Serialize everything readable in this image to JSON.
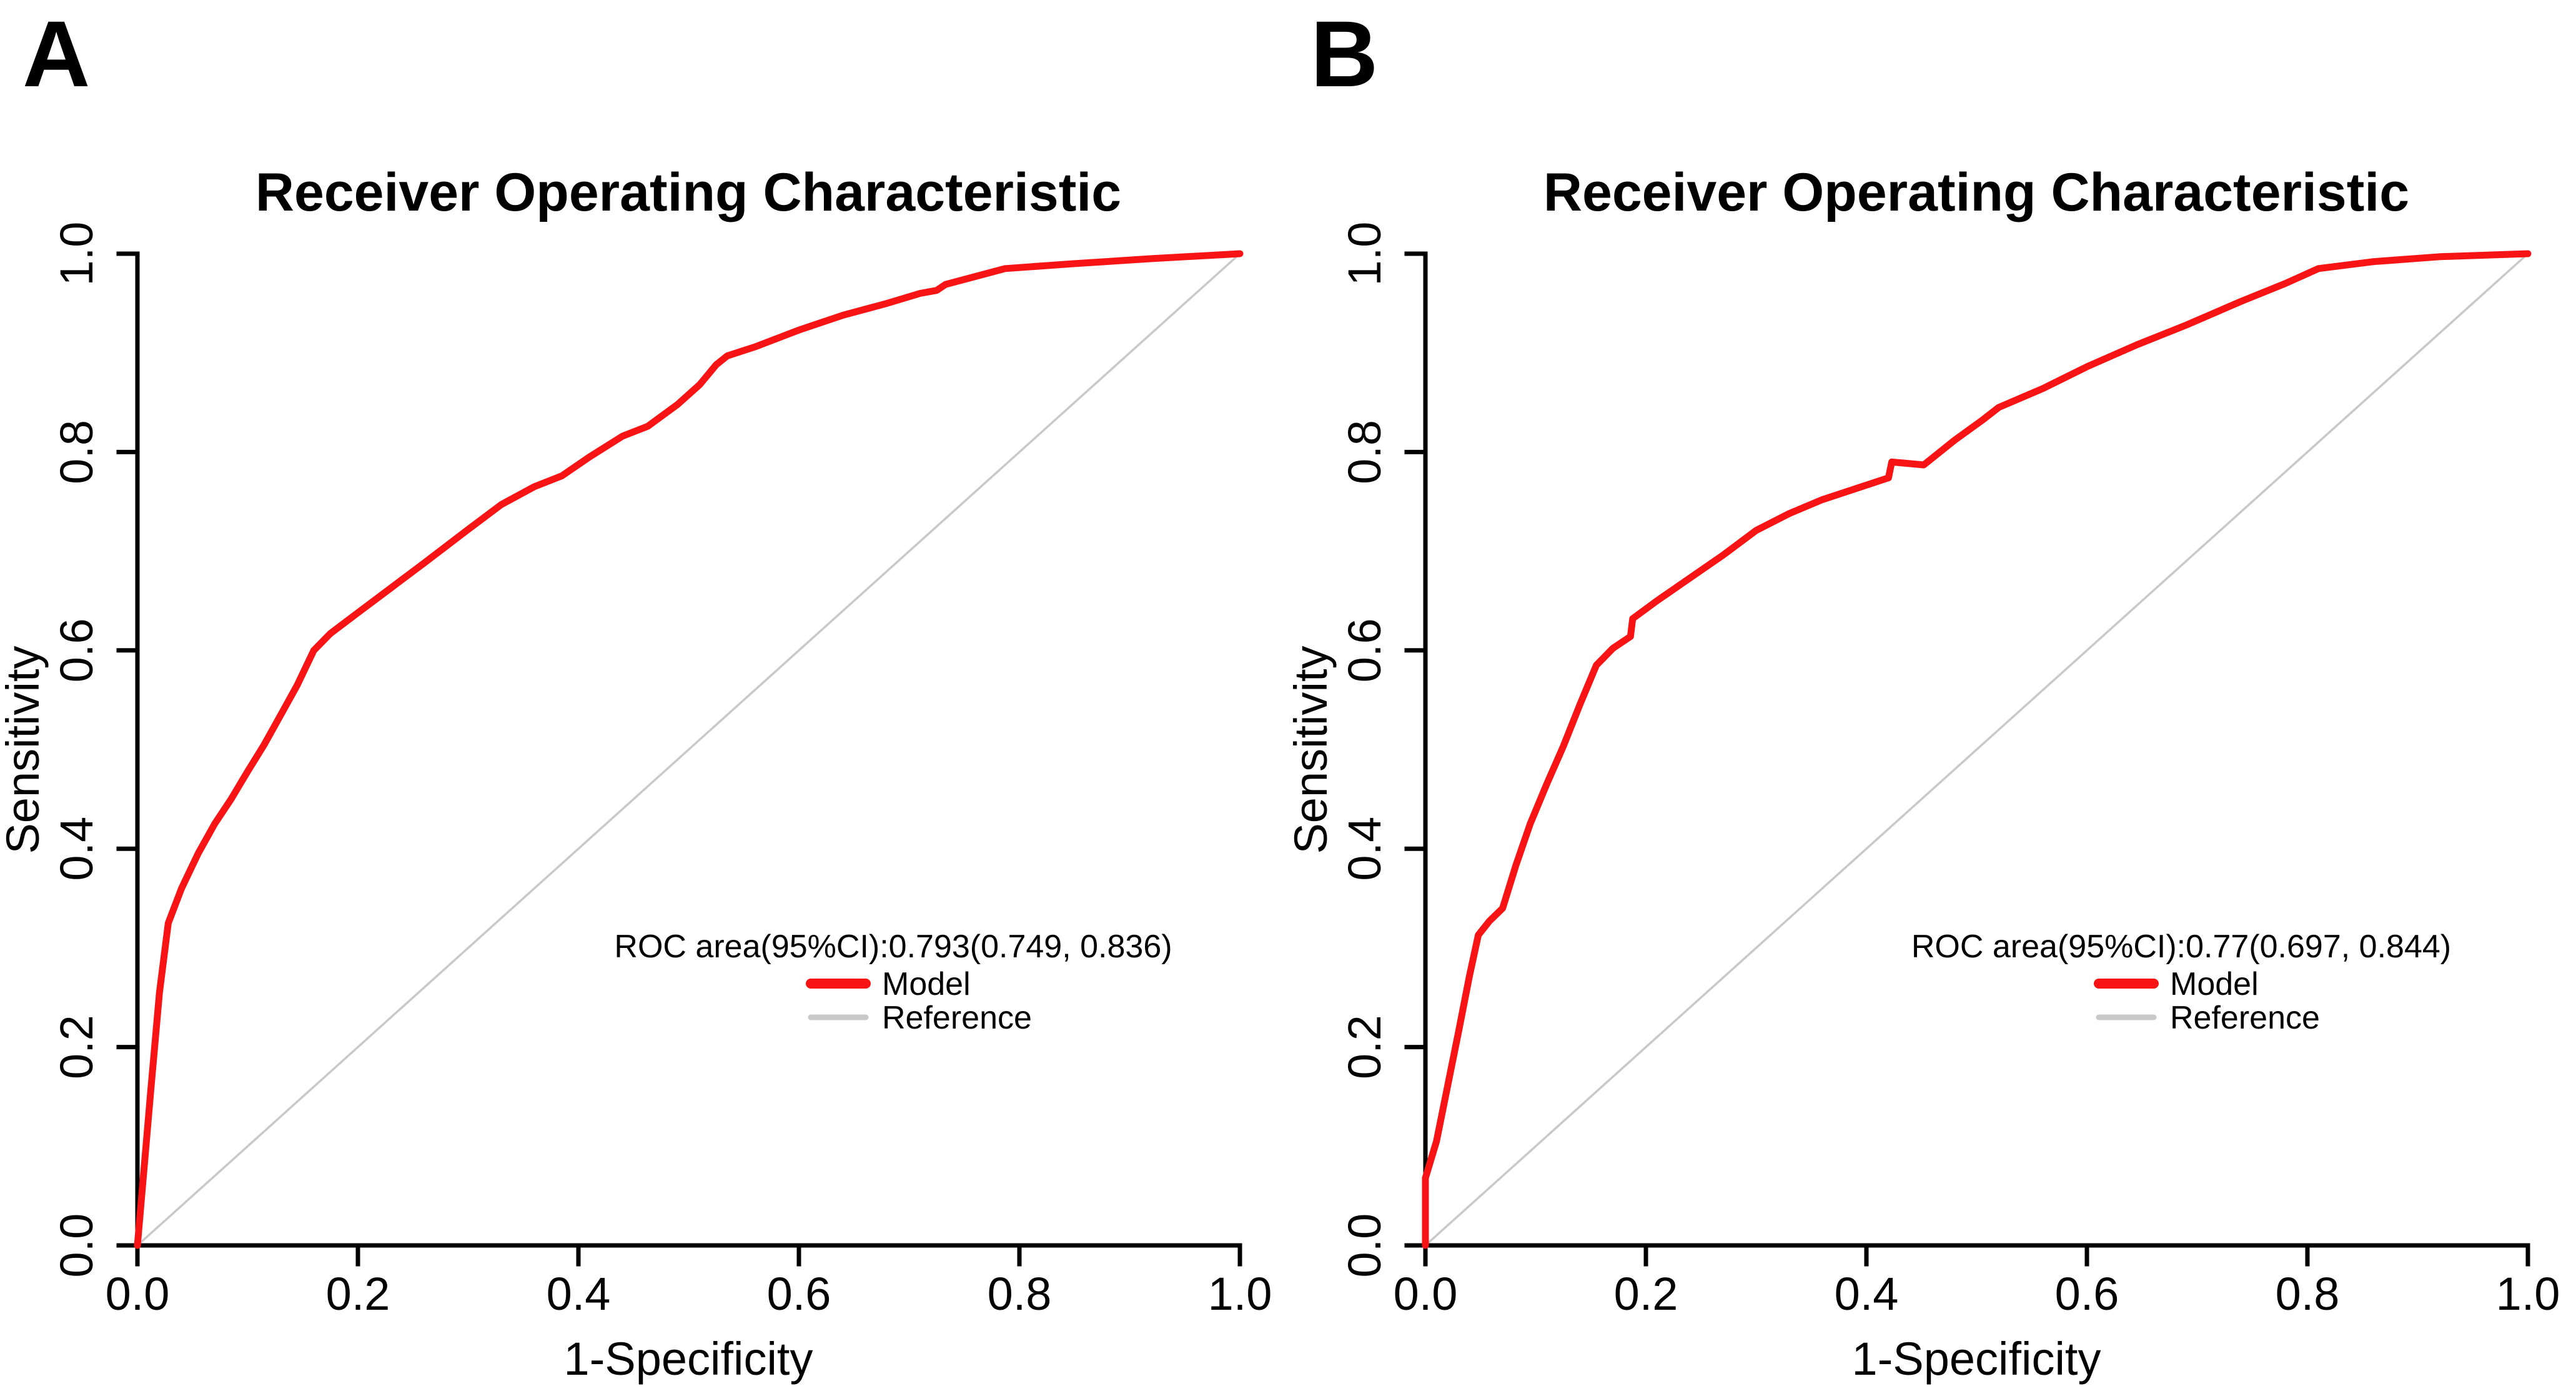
{
  "figure": {
    "background": "#FFFFFF",
    "axis_color": "#000000"
  },
  "chart_data": [
    {
      "id": "a",
      "panel_label": "A",
      "type": "line",
      "title": "Receiver Operating Characteristic",
      "xlabel": "1-Specificity",
      "ylabel": "Sensitivity",
      "xlim": [
        0,
        1
      ],
      "ylim": [
        0,
        1
      ],
      "grid": false,
      "x_ticks": {
        "values": [
          0,
          0.2,
          0.4,
          0.6,
          0.8,
          1.0
        ],
        "labels": [
          "0.0",
          "0.2",
          "0.4",
          "0.6",
          "0.8",
          "1.0"
        ]
      },
      "y_ticks": {
        "values": [
          0,
          0.2,
          0.4,
          0.6,
          0.8,
          1.0
        ],
        "labels": [
          "0.0",
          "0.2",
          "0.4",
          "0.6",
          "0.8",
          "1.0"
        ]
      },
      "auc": {
        "value": 0.793,
        "ci_level": "95%",
        "ci_lower": 0.749,
        "ci_upper": 0.836
      },
      "legend": {
        "position": "inside-lower-right",
        "auc_text": "ROC area(95%CI):0.793(0.749, 0.836)",
        "entries": [
          {
            "label": "Model",
            "color": "#F81414"
          },
          {
            "label": "Reference",
            "color": "#C9C9C9"
          }
        ]
      },
      "series": [
        {
          "name": "Model",
          "color": "#F81414",
          "points": [
            [
              0,
              0
            ],
            [
              0.012,
              0.155
            ],
            [
              0.02,
              0.255
            ],
            [
              0.028,
              0.325
            ],
            [
              0.04,
              0.36
            ],
            [
              0.055,
              0.395
            ],
            [
              0.07,
              0.425
            ],
            [
              0.085,
              0.45
            ],
            [
              0.1,
              0.478
            ],
            [
              0.115,
              0.505
            ],
            [
              0.13,
              0.535
            ],
            [
              0.145,
              0.565
            ],
            [
              0.16,
              0.6
            ],
            [
              0.175,
              0.617
            ],
            [
              0.2,
              0.638
            ],
            [
              0.23,
              0.663
            ],
            [
              0.26,
              0.688
            ],
            [
              0.3,
              0.722
            ],
            [
              0.33,
              0.747
            ],
            [
              0.36,
              0.765
            ],
            [
              0.385,
              0.776
            ],
            [
              0.41,
              0.795
            ],
            [
              0.44,
              0.816
            ],
            [
              0.463,
              0.826
            ],
            [
              0.49,
              0.848
            ],
            [
              0.51,
              0.868
            ],
            [
              0.525,
              0.888
            ],
            [
              0.535,
              0.897
            ],
            [
              0.56,
              0.906
            ],
            [
              0.6,
              0.923
            ],
            [
              0.64,
              0.938
            ],
            [
              0.68,
              0.95
            ],
            [
              0.71,
              0.96
            ],
            [
              0.725,
              0.963
            ],
            [
              0.733,
              0.969
            ],
            [
              0.76,
              0.977
            ],
            [
              0.787,
              0.985
            ],
            [
              0.85,
              0.99
            ],
            [
              0.92,
              0.995
            ],
            [
              1,
              1
            ]
          ]
        },
        {
          "name": "Reference",
          "color": "#C9C9C9",
          "points": [
            [
              0,
              0
            ],
            [
              1,
              1
            ]
          ]
        }
      ]
    },
    {
      "id": "b",
      "panel_label": "B",
      "type": "line",
      "title": "Receiver Operating Characteristic",
      "xlabel": "1-Specificity",
      "ylabel": "Sensitivity",
      "xlim": [
        0,
        1
      ],
      "ylim": [
        0,
        1
      ],
      "grid": false,
      "x_ticks": {
        "values": [
          0,
          0.2,
          0.4,
          0.6,
          0.8,
          1.0
        ],
        "labels": [
          "0.0",
          "0.2",
          "0.4",
          "0.6",
          "0.8",
          "1.0"
        ]
      },
      "y_ticks": {
        "values": [
          0,
          0.2,
          0.4,
          0.6,
          0.8,
          1.0
        ],
        "labels": [
          "0.0",
          "0.2",
          "0.4",
          "0.6",
          "0.8",
          "1.0"
        ]
      },
      "auc": {
        "value": 0.77,
        "ci_level": "95%",
        "ci_lower": 0.697,
        "ci_upper": 0.844
      },
      "legend": {
        "position": "inside-lower-right",
        "auc_text": "ROC area(95%CI):0.77(0.697, 0.844)",
        "entries": [
          {
            "label": "Model",
            "color": "#F81414"
          },
          {
            "label": "Reference",
            "color": "#C9C9C9"
          }
        ]
      },
      "series": [
        {
          "name": "Model",
          "color": "#F81414",
          "points": [
            [
              0,
              0
            ],
            [
              0,
              0.068
            ],
            [
              0.01,
              0.105
            ],
            [
              0.02,
              0.16
            ],
            [
              0.03,
              0.215
            ],
            [
              0.04,
              0.272
            ],
            [
              0.048,
              0.313
            ],
            [
              0.058,
              0.327
            ],
            [
              0.07,
              0.34
            ],
            [
              0.082,
              0.383
            ],
            [
              0.095,
              0.425
            ],
            [
              0.11,
              0.465
            ],
            [
              0.125,
              0.503
            ],
            [
              0.14,
              0.545
            ],
            [
              0.155,
              0.585
            ],
            [
              0.17,
              0.602
            ],
            [
              0.186,
              0.614
            ],
            [
              0.188,
              0.632
            ],
            [
              0.21,
              0.65
            ],
            [
              0.24,
              0.673
            ],
            [
              0.27,
              0.696
            ],
            [
              0.3,
              0.721
            ],
            [
              0.33,
              0.738
            ],
            [
              0.36,
              0.752
            ],
            [
              0.39,
              0.763
            ],
            [
              0.42,
              0.774
            ],
            [
              0.423,
              0.79
            ],
            [
              0.452,
              0.787
            ],
            [
              0.48,
              0.812
            ],
            [
              0.505,
              0.832
            ],
            [
              0.52,
              0.845
            ],
            [
              0.56,
              0.864
            ],
            [
              0.6,
              0.886
            ],
            [
              0.645,
              0.908
            ],
            [
              0.69,
              0.928
            ],
            [
              0.74,
              0.952
            ],
            [
              0.78,
              0.97
            ],
            [
              0.81,
              0.985
            ],
            [
              0.86,
              0.992
            ],
            [
              0.92,
              0.997
            ],
            [
              1,
              1
            ]
          ]
        },
        {
          "name": "Reference",
          "color": "#C9C9C9",
          "points": [
            [
              0,
              0
            ],
            [
              1,
              1
            ]
          ]
        }
      ]
    }
  ]
}
